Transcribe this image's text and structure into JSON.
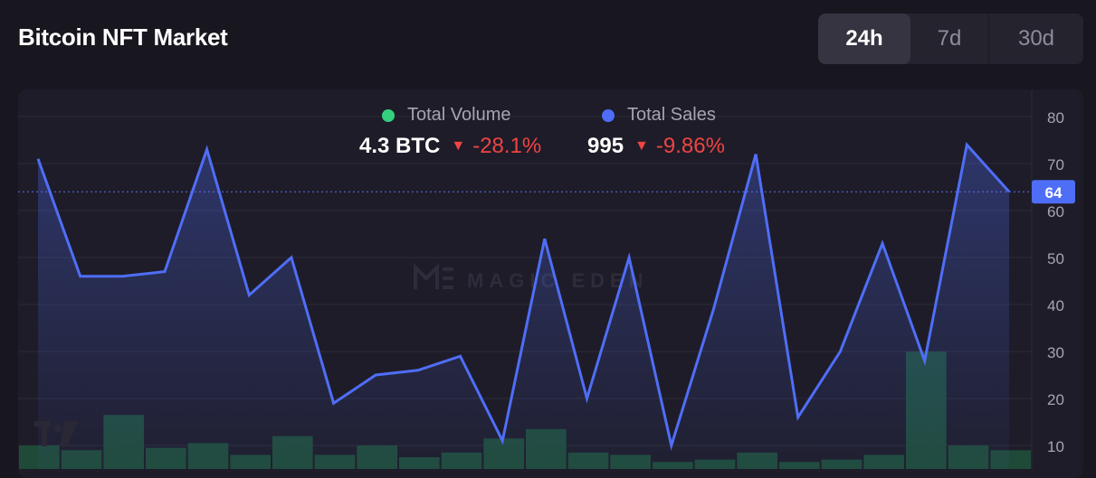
{
  "header": {
    "title": "Bitcoin NFT Market",
    "ranges": [
      "24h",
      "7d",
      "30d"
    ],
    "active_range": "24h"
  },
  "legend": [
    {
      "name": "Total Volume",
      "color": "#35d07f",
      "value": "4.3 BTC",
      "change": "-28.1%",
      "direction": "down"
    },
    {
      "name": "Total Sales",
      "color": "#4f6ef7",
      "value": "995",
      "change": "-9.86%",
      "direction": "down"
    }
  ],
  "watermark": {
    "text": "MAGIC EDEN",
    "logo_icon": "magic-eden-logo-icon",
    "corner_logo_icon": "tradingview-logo-icon"
  },
  "chart_data": {
    "type": "line",
    "yaxis_ticks": [
      10,
      20,
      30,
      40,
      50,
      60,
      70,
      80
    ],
    "ylim": [
      5,
      85
    ],
    "current_value_label": "64",
    "grid": "horizontal",
    "series": [
      {
        "name": "Total Sales",
        "type": "area-line",
        "color": "#4f6ef7",
        "values": [
          71,
          46,
          46,
          47,
          73,
          42,
          50,
          19,
          25,
          26,
          29,
          11,
          54,
          20,
          50,
          10,
          39,
          72,
          16,
          30,
          53,
          28,
          74,
          64
        ]
      },
      {
        "name": "Total Volume",
        "type": "bar",
        "color": "#1f4a38",
        "values": [
          10,
          9,
          16.5,
          9.5,
          10.5,
          8,
          12,
          8,
          10,
          7.5,
          8.5,
          11.5,
          13.5,
          8.5,
          8,
          6.5,
          7,
          8.5,
          6.5,
          7,
          8,
          30,
          10,
          9
        ]
      }
    ]
  }
}
